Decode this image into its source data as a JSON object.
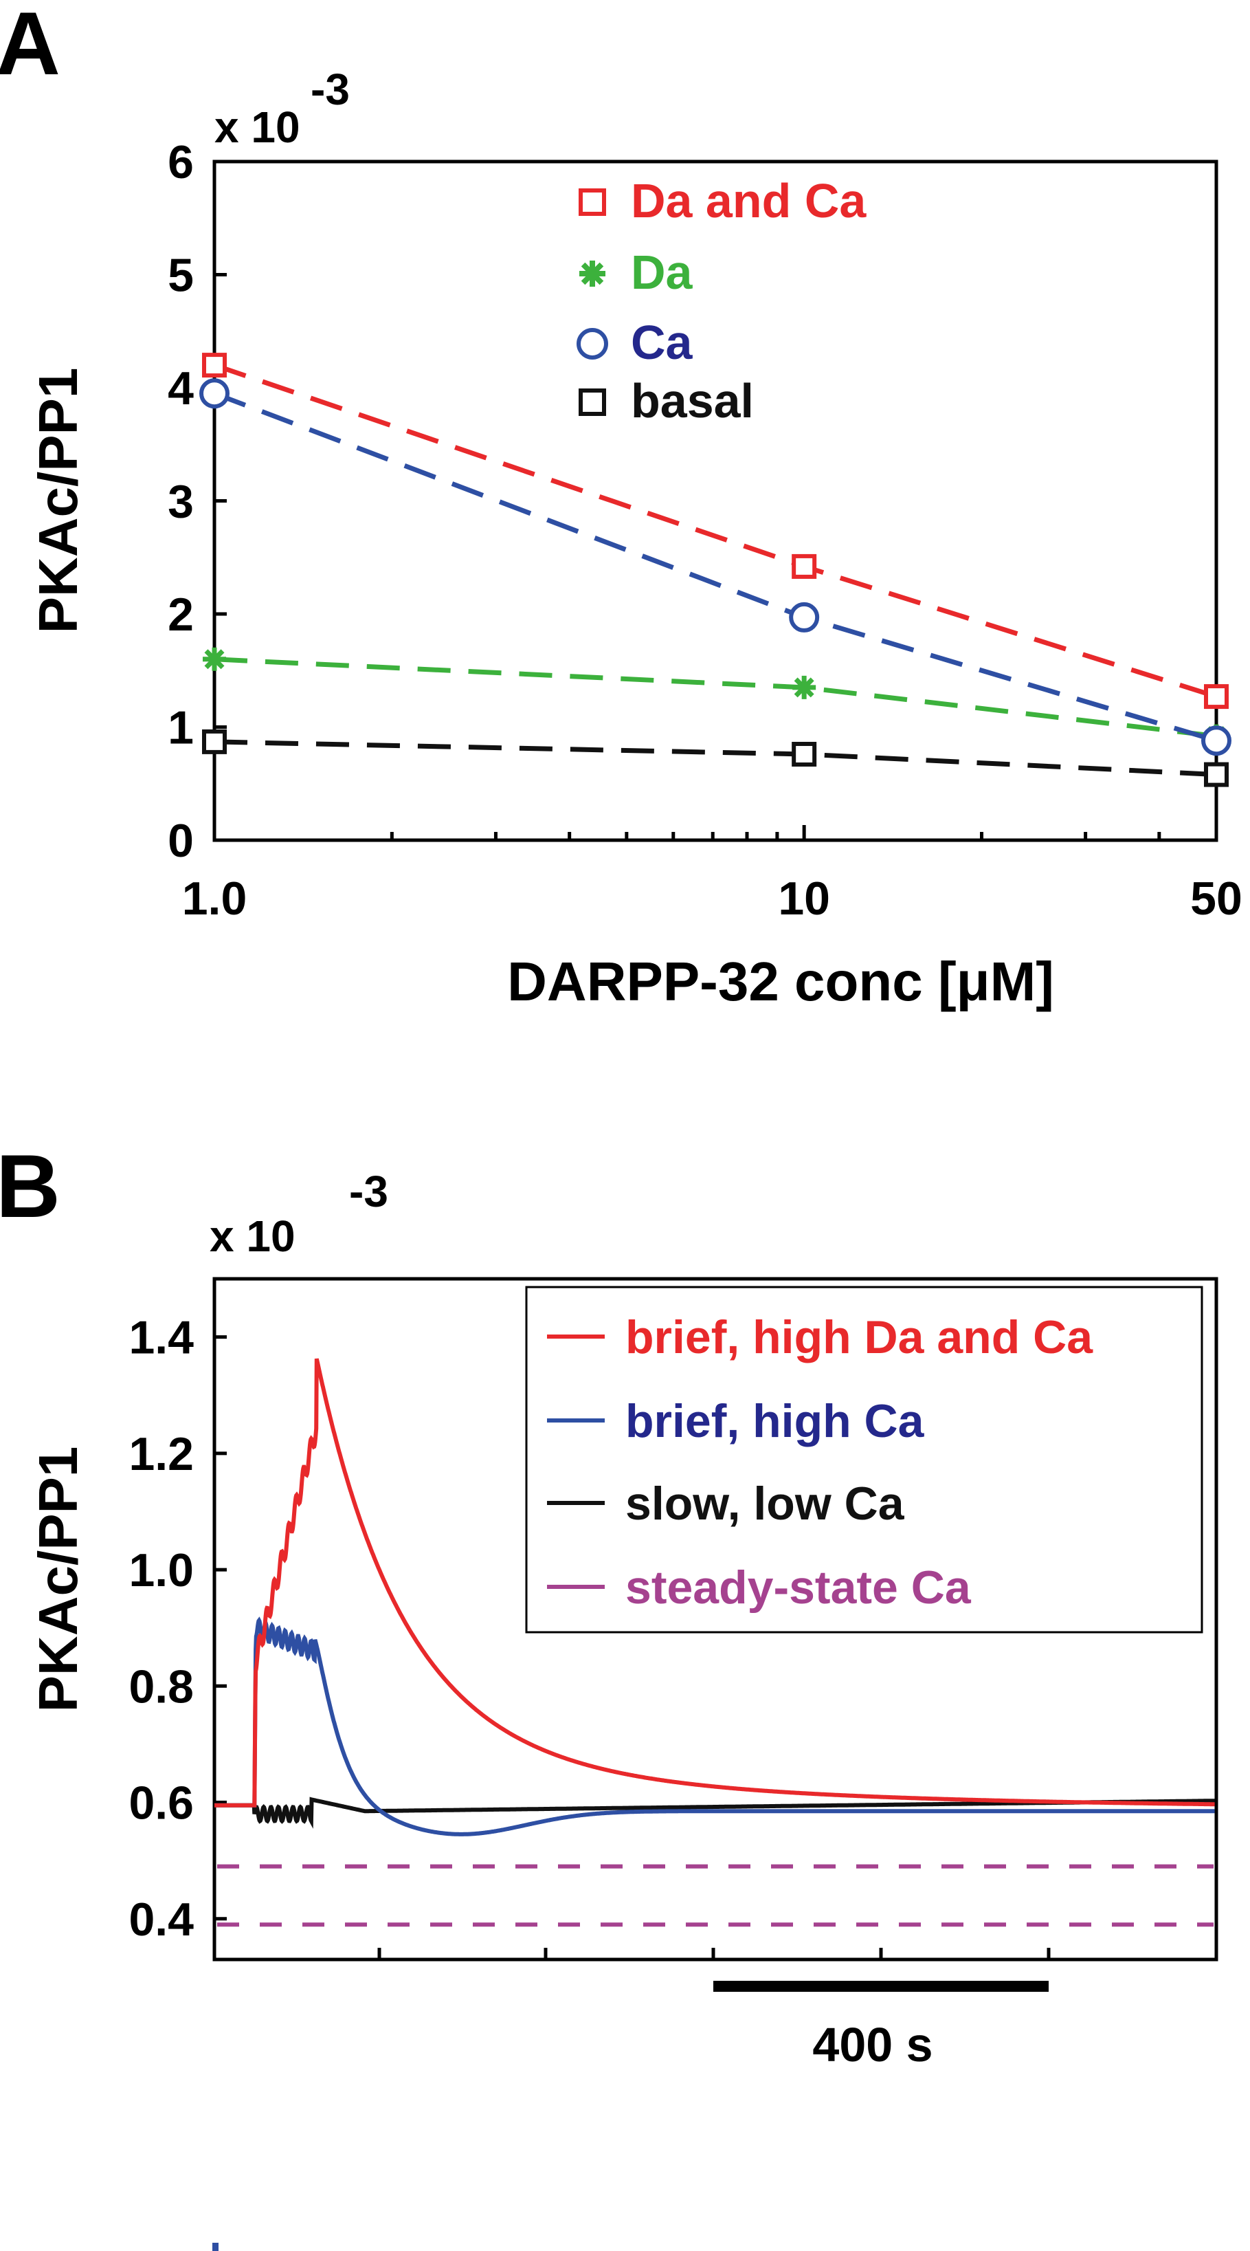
{
  "colors": {
    "red": "#e8292b",
    "green": "#3cb13c",
    "blue": "#2e4fa3",
    "black": "#111111",
    "magenta": "#a5428f",
    "legend_red_text": "#e8292b",
    "legend_green_text": "#3cb13c",
    "legend_blue_text": "#24288c",
    "legend_magenta_text": "#a5428f"
  },
  "chart_data": [
    {
      "panel_label": "A",
      "type": "line",
      "x_scale": "log",
      "xlabel": "DARPP-32 conc [μM]",
      "ylabel": "PKAc/PP1",
      "y_multiplier_base": "x 10",
      "y_multiplier_exp": "-3",
      "x": [
        1,
        10,
        50
      ],
      "xlim": [
        1,
        50
      ],
      "ylim": [
        0,
        6
      ],
      "x_tick_labels": [
        "1.0",
        "10",
        "50"
      ],
      "y_tick_labels": [
        "0",
        "1",
        "2",
        "3",
        "4",
        "5",
        "6"
      ],
      "legend_position": "top-center",
      "series": [
        {
          "name": "Da and Ca",
          "color": "red",
          "marker": "square",
          "values": [
            4.2,
            2.42,
            1.27
          ]
        },
        {
          "name": "Da",
          "color": "green",
          "marker": "star",
          "values": [
            1.6,
            1.35,
            0.92
          ]
        },
        {
          "name": "Ca",
          "color": "blue",
          "marker": "circle",
          "values": [
            3.95,
            1.97,
            0.88
          ]
        },
        {
          "name": "basal",
          "color": "black",
          "marker": "square",
          "values": [
            0.87,
            0.76,
            0.58
          ]
        }
      ]
    },
    {
      "panel_label": "B",
      "type": "line",
      "ylabel": "PKAc/PP1",
      "y_multiplier_base": "x 10",
      "y_multiplier_exp": "-3",
      "ylim": [
        0.33,
        1.5
      ],
      "y_tick_labels": [
        "0.4",
        "0.6",
        "0.8",
        "1.0",
        "1.2",
        "1.4"
      ],
      "scale_bar_label": "400 s",
      "legend_position": "top-right",
      "series": [
        {
          "name": "brief, high Da and Ca",
          "color": "red"
        },
        {
          "name": "brief, high Ca",
          "color": "blue"
        },
        {
          "name": "slow, low Ca",
          "color": "black"
        },
        {
          "name": "steady-state Ca",
          "color": "magenta",
          "dashed": true,
          "levels": [
            0.49,
            0.39
          ]
        }
      ]
    }
  ]
}
